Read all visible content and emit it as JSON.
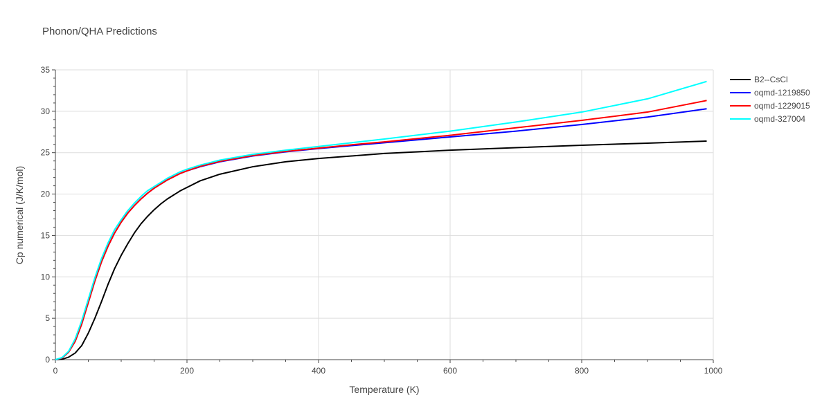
{
  "chart_data": {
    "type": "line",
    "title": "Phonon/QHA Predictions",
    "xlabel": "Temperature (K)",
    "ylabel": "Cp numerical (J/K/mol)",
    "xlim": [
      0,
      1000
    ],
    "ylim": [
      0,
      35
    ],
    "xticks": [
      0,
      200,
      400,
      600,
      800,
      1000
    ],
    "yticks": [
      0,
      5,
      10,
      15,
      20,
      25,
      30,
      35
    ],
    "grid": true,
    "legend_position": "top-right",
    "series": [
      {
        "name": "B2--CsCl",
        "color": "#000000",
        "x": [
          0,
          10,
          20,
          30,
          40,
          50,
          60,
          70,
          80,
          90,
          100,
          110,
          120,
          130,
          140,
          150,
          160,
          170,
          180,
          190,
          200,
          220,
          250,
          300,
          350,
          400,
          450,
          500,
          600,
          700,
          800,
          900,
          990
        ],
        "y": [
          0,
          0.05,
          0.3,
          0.8,
          1.7,
          3.2,
          5.0,
          7.0,
          9.1,
          11.0,
          12.6,
          14.0,
          15.3,
          16.4,
          17.3,
          18.1,
          18.8,
          19.4,
          19.9,
          20.4,
          20.8,
          21.6,
          22.4,
          23.3,
          23.9,
          24.3,
          24.6,
          24.9,
          25.3,
          25.6,
          25.9,
          26.15,
          26.4
        ]
      },
      {
        "name": "oqmd-1219850",
        "color": "#0000ff",
        "x": [
          0,
          10,
          20,
          30,
          40,
          50,
          60,
          70,
          80,
          90,
          100,
          110,
          120,
          130,
          140,
          150,
          160,
          170,
          180,
          190,
          200,
          220,
          250,
          300,
          350,
          400,
          450,
          500,
          600,
          700,
          800,
          900,
          990
        ],
        "y": [
          0,
          0.2,
          0.9,
          2.2,
          4.3,
          6.9,
          9.5,
          11.8,
          13.7,
          15.3,
          16.6,
          17.7,
          18.6,
          19.4,
          20.1,
          20.7,
          21.2,
          21.7,
          22.1,
          22.5,
          22.8,
          23.3,
          23.9,
          24.6,
          25.1,
          25.5,
          25.85,
          26.2,
          26.9,
          27.6,
          28.4,
          29.3,
          30.3
        ]
      },
      {
        "name": "oqmd-1229015",
        "color": "#ff0000",
        "x": [
          0,
          10,
          20,
          30,
          40,
          50,
          60,
          70,
          80,
          90,
          100,
          110,
          120,
          130,
          140,
          150,
          160,
          170,
          180,
          190,
          200,
          220,
          250,
          300,
          350,
          400,
          450,
          500,
          600,
          700,
          800,
          900,
          990
        ],
        "y": [
          0,
          0.2,
          0.9,
          2.2,
          4.3,
          6.9,
          9.5,
          11.8,
          13.7,
          15.3,
          16.6,
          17.7,
          18.6,
          19.4,
          20.1,
          20.7,
          21.2,
          21.7,
          22.1,
          22.5,
          22.8,
          23.35,
          23.95,
          24.65,
          25.15,
          25.55,
          25.95,
          26.3,
          27.1,
          28.0,
          28.9,
          29.9,
          31.3
        ]
      },
      {
        "name": "oqmd-327004",
        "color": "#00ffff",
        "x": [
          0,
          10,
          20,
          30,
          40,
          50,
          60,
          70,
          80,
          90,
          100,
          110,
          120,
          130,
          140,
          150,
          160,
          170,
          180,
          190,
          200,
          220,
          250,
          300,
          350,
          400,
          450,
          500,
          600,
          700,
          800,
          900,
          990
        ],
        "y": [
          0,
          0.25,
          1.0,
          2.5,
          4.7,
          7.3,
          9.9,
          12.2,
          14.1,
          15.7,
          16.9,
          18.0,
          18.9,
          19.7,
          20.4,
          20.9,
          21.4,
          21.9,
          22.3,
          22.7,
          23.0,
          23.5,
          24.1,
          24.8,
          25.3,
          25.75,
          26.2,
          26.65,
          27.6,
          28.7,
          29.9,
          31.5,
          33.6
        ]
      }
    ]
  }
}
